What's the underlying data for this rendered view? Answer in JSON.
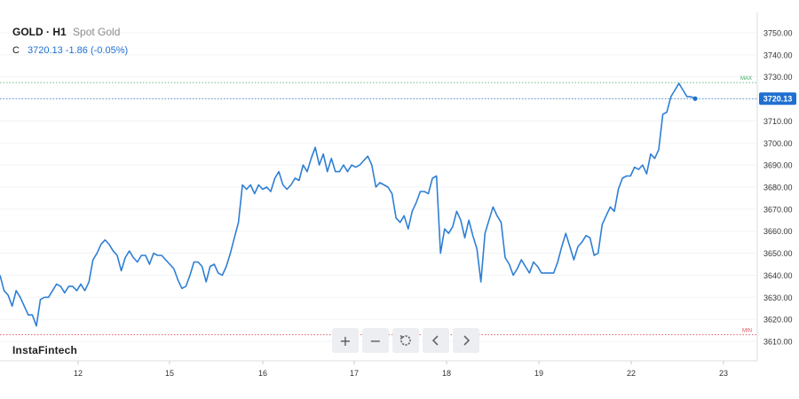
{
  "header": {
    "symbol": "GOLD · H1",
    "description": "Spot Gold",
    "close_label": "C",
    "close_value": "3720.13",
    "change": "-1.86 (-0.05%)"
  },
  "brand": "InstaFintech",
  "toolbar": [
    {
      "name": "zoom-in-button",
      "icon": "plus-icon",
      "glyph": "+"
    },
    {
      "name": "zoom-out-button",
      "icon": "minus-icon",
      "glyph": "−"
    },
    {
      "name": "reset-button",
      "icon": "reset-icon",
      "glyph": "⟲"
    },
    {
      "name": "scroll-left-button",
      "icon": "chevron-left-icon",
      "glyph": "‹"
    },
    {
      "name": "scroll-right-button",
      "icon": "chevron-right-icon",
      "glyph": "›"
    }
  ],
  "colors": {
    "line": "#2e7fd4",
    "grid": "#f1f3f5",
    "max": "#3aa85f",
    "min": "#e0505a",
    "current": "#1f6fd1",
    "axis_text": "#333333"
  },
  "chart_data": {
    "type": "line",
    "series": [
      {
        "y": [
          3640,
          3633,
          3631,
          3626,
          3633,
          3630,
          3626,
          3622,
          3622,
          3617,
          3629,
          3630,
          3630,
          3633,
          3636,
          3635,
          3632,
          3635,
          3635,
          3633,
          3636,
          3633,
          3637,
          3647,
          3650,
          3654,
          3656,
          3654,
          3651,
          3649,
          3642,
          3648,
          3651,
          3648,
          3646,
          3649,
          3649,
          3645,
          3650,
          3649,
          3649,
          3647,
          3645,
          3643,
          3638,
          3634,
          3635,
          3640,
          3646,
          3646,
          3644,
          3637,
          3644,
          3645,
          3641,
          3640,
          3644,
          3650,
          3657,
          3664,
          3681,
          3679,
          3681,
          3677,
          3681,
          3679,
          3680,
          3678,
          3684,
          3687,
          3681,
          3679,
          3681,
          3684,
          3683,
          3690,
          3687,
          3693,
          3698,
          3690,
          3695,
          3687,
          3693,
          3687,
          3687,
          3690,
          3687,
          3690,
          3689,
          3690,
          3692,
          3694,
          3690,
          3680,
          3682,
          3681,
          3680,
          3677,
          3666,
          3664,
          3667,
          3661,
          3669,
          3673,
          3678,
          3678,
          3677,
          3684,
          3685,
          3650,
          3661,
          3659,
          3662,
          3669,
          3665,
          3657,
          3665,
          3658,
          3652,
          3637,
          3659,
          3665,
          3671,
          3667,
          3664,
          3648,
          3645,
          3640,
          3643,
          3647,
          3644,
          3641,
          3646,
          3644,
          3641,
          3641,
          3641,
          3641,
          3646,
          3653,
          3659,
          3653,
          3647,
          3653,
          3655,
          3658,
          3657,
          3649,
          3650,
          3663,
          3667,
          3671,
          3669,
          3679,
          3684,
          3685,
          3685,
          3689,
          3688,
          3690,
          3686,
          3695,
          3693,
          3697,
          3713,
          3714,
          3721,
          3724,
          3727,
          3724,
          3721,
          3721,
          3720.13
        ]
      }
    ],
    "x_ticks": [
      "12",
      "15",
      "16",
      "17",
      "18",
      "19",
      "22",
      "23"
    ],
    "y_ticks": [
      "3610.00",
      "3620.00",
      "3630.00",
      "3640.00",
      "3650.00",
      "3660.00",
      "3670.00",
      "3680.00",
      "3690.00",
      "3700.00",
      "3710.00",
      "3720.00",
      "3730.00",
      "3740.00",
      "3750.00"
    ],
    "y_tick_values": [
      3610,
      3620,
      3630,
      3640,
      3650,
      3660,
      3670,
      3680,
      3690,
      3700,
      3710,
      3720,
      3730,
      3740,
      3750
    ],
    "ylim": [
      3605.5,
      3755.5
    ],
    "grid": true,
    "max_label": "MAX",
    "min_label": "MIN",
    "max_value": 3727.4,
    "min_value": 3613,
    "current_value": 3720.13,
    "current_label": "3720.13"
  }
}
